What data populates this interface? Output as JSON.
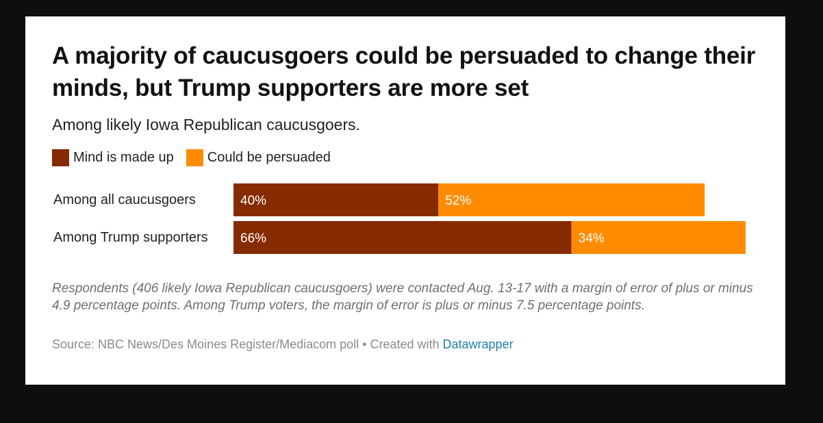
{
  "colors": {
    "made_up": "#862a00",
    "persuaded": "#ff8c00",
    "bar_text": "#ffffff",
    "link": "#1d81a2"
  },
  "chart_data": {
    "type": "bar",
    "orientation": "horizontal",
    "stacked": true,
    "title": "A majority of caucusgoers could be persuaded to change their minds, but Trump supporters are more set",
    "subtitle": "Among likely Iowa Republican caucusgoers.",
    "categories": [
      "Among all caucusgoers",
      "Among Trump supporters"
    ],
    "series": [
      {
        "name": "Mind is made up",
        "values": [
          40,
          66
        ],
        "labels": [
          "40%",
          "66%"
        ]
      },
      {
        "name": "Could be persuaded",
        "values": [
          52,
          34
        ],
        "labels": [
          "52%",
          "34%"
        ]
      }
    ],
    "xlim": [
      0,
      100
    ],
    "unit": "%",
    "legend_position": "top-left",
    "grid": false
  },
  "notes": "Respondents (406 likely Iowa Republican caucusgoers) were contacted Aug. 13-17 with a margin of error of plus or minus 4.9 percentage points. Among Trump voters, the margin of error is plus or minus 7.5 percentage points.",
  "source": {
    "prefix": "Source: NBC News/Des Moines Register/Mediacom poll • Created with ",
    "link_text": "Datawrapper"
  }
}
